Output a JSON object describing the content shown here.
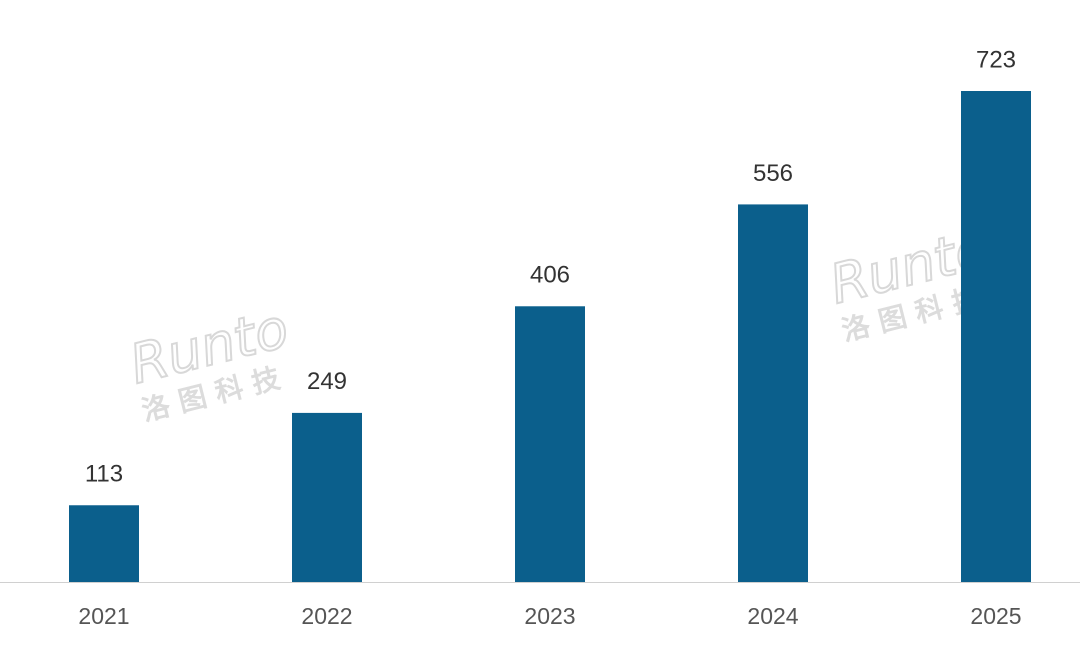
{
  "chart_data": {
    "type": "bar",
    "categories": [
      "2021",
      "2022",
      "2023",
      "2024",
      "2025"
    ],
    "values": [
      113,
      249,
      406,
      556,
      723
    ],
    "color": "#0b5f8c",
    "watermark": {
      "logo": "Runto",
      "name": "洛 图 科 技"
    }
  }
}
